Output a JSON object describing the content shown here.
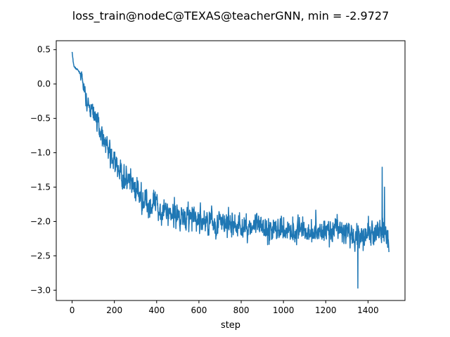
{
  "chart_data": {
    "type": "line",
    "title": "loss_train@nodeC@TEXAS@teacherGNN, min = -2.9727",
    "xlabel": "step",
    "ylabel": "",
    "xlim": [
      -75,
      1575
    ],
    "ylim": [
      -3.15,
      0.63
    ],
    "xticks": [
      0,
      200,
      400,
      600,
      800,
      1000,
      1200,
      1400
    ],
    "xtick_labels": [
      "0",
      "200",
      "400",
      "600",
      "800",
      "1000",
      "1200",
      "1400"
    ],
    "yticks": [
      0.5,
      0.0,
      -0.5,
      -1.0,
      -1.5,
      -2.0,
      -2.5,
      -3.0
    ],
    "ytick_labels": [
      "0.5",
      "0.0",
      "−0.5",
      "−1.0",
      "−1.5",
      "−2.0",
      "−2.5",
      "−3.0"
    ],
    "grid": false,
    "legend": "none",
    "line_color": "#1f77b4",
    "series": [
      {
        "values": [
          [
            0,
            0.47
          ],
          [
            5,
            0.32
          ],
          [
            10,
            0.25
          ],
          [
            20,
            0.22
          ],
          [
            30,
            0.19
          ],
          [
            40,
            0.15
          ],
          [
            50,
            0.0
          ],
          [
            60,
            -0.12
          ],
          [
            70,
            -0.28
          ],
          [
            80,
            -0.35
          ],
          [
            90,
            -0.38
          ],
          [
            100,
            -0.42
          ],
          [
            110,
            -0.48
          ],
          [
            120,
            -0.55
          ],
          [
            130,
            -0.63
          ],
          [
            140,
            -0.7
          ],
          [
            150,
            -0.78
          ],
          [
            160,
            -0.86
          ],
          [
            170,
            -0.95
          ],
          [
            180,
            -1.03
          ],
          [
            190,
            -1.1
          ],
          [
            200,
            -1.15
          ],
          [
            215,
            -1.22
          ],
          [
            230,
            -1.3
          ],
          [
            250,
            -1.38
          ],
          [
            270,
            -1.45
          ],
          [
            300,
            -1.55
          ],
          [
            330,
            -1.65
          ],
          [
            360,
            -1.73
          ],
          [
            400,
            -1.8
          ],
          [
            450,
            -1.86
          ],
          [
            500,
            -1.9
          ],
          [
            600,
            -1.98
          ],
          [
            700,
            -2.03
          ],
          [
            800,
            -2.07
          ],
          [
            900,
            -2.1
          ],
          [
            1000,
            -2.12
          ],
          [
            1100,
            -2.13
          ],
          [
            1200,
            -2.14
          ],
          [
            1300,
            -2.15
          ],
          [
            1350,
            -2.2
          ],
          [
            1400,
            -2.17
          ],
          [
            1450,
            -2.18
          ],
          [
            1470,
            -2.15
          ],
          [
            1499,
            -2.22
          ]
        ]
      }
    ],
    "annotations": [
      {
        "x": 1352,
        "y": -2.97
      },
      {
        "x": 1467,
        "y": -1.21
      },
      {
        "x": 1478,
        "y": -1.5
      }
    ],
    "noise_amplitude": 0.22,
    "point_count": 1500
  }
}
